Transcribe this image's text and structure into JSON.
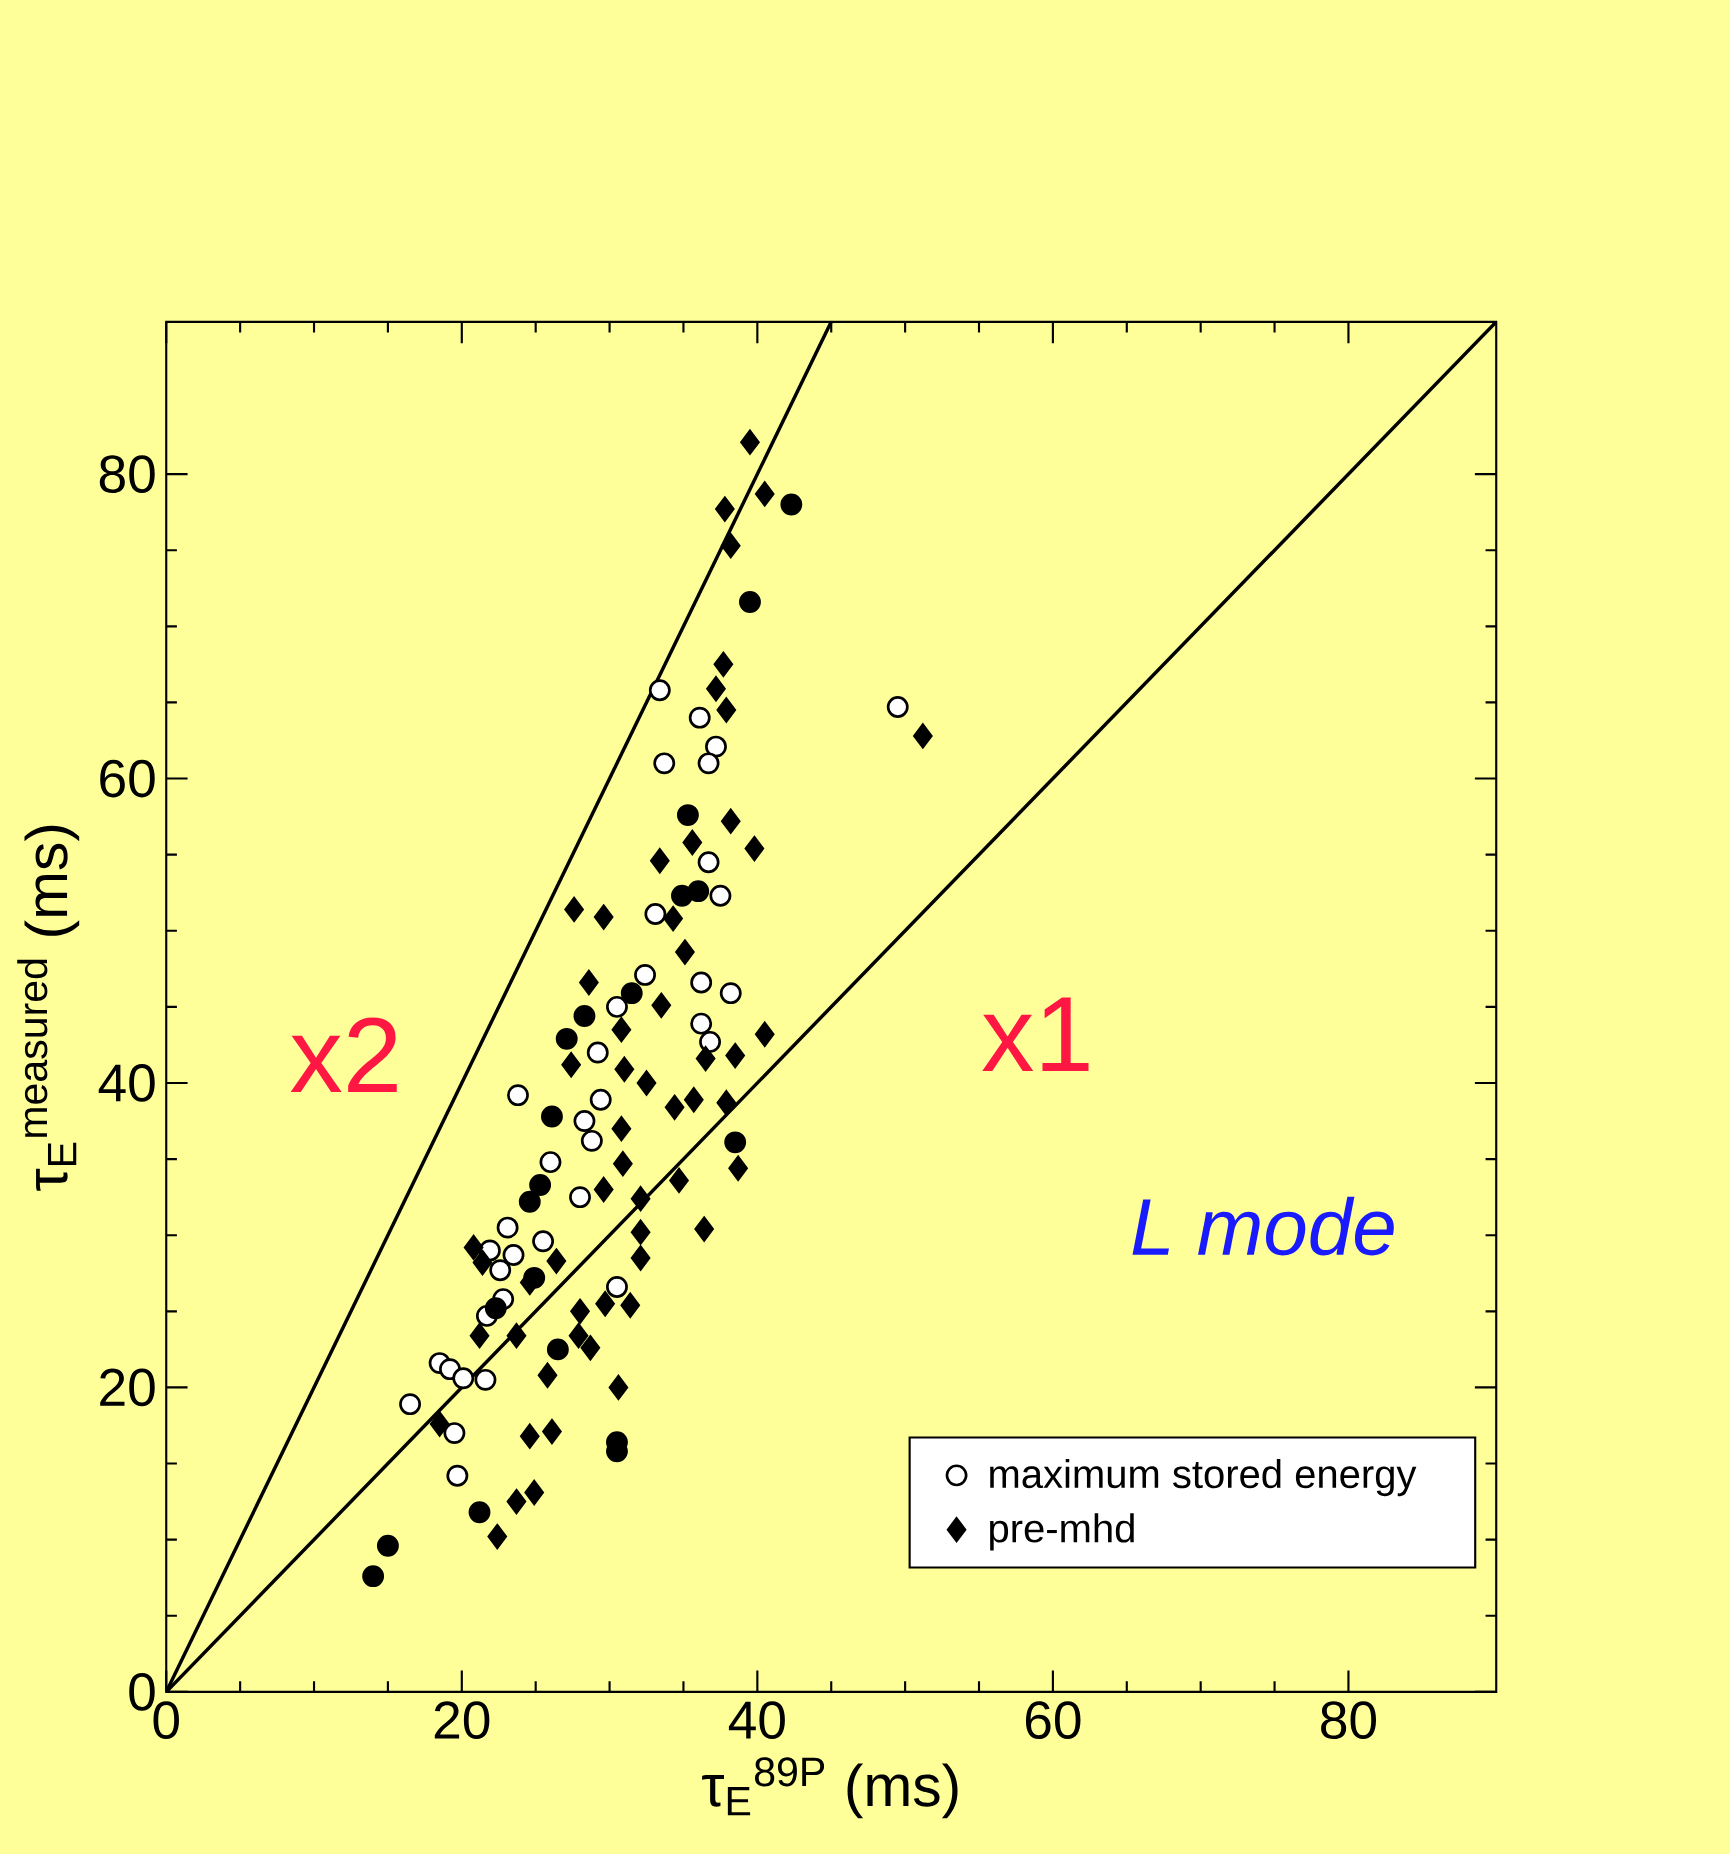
{
  "chart_data": {
    "type": "scatter",
    "xlabel": "τ$_{E}$$^{89P}$ (ms)",
    "ylabel": "τ$_{E}$$^{measured}$ (ms)",
    "xlim": [
      0,
      90
    ],
    "ylim": [
      0,
      90
    ],
    "xticks": [
      0,
      20,
      40,
      60,
      80
    ],
    "yticks": [
      0,
      20,
      40,
      60,
      80
    ],
    "grid": false,
    "legend": "bottom right",
    "annotations": [
      "x2",
      "x1",
      "*L mode*"
    ],
    "series": [
      {
        "name": "maximum stored energy",
        "type": "scatter",
        "marker": "circle",
        "color": "#ffffff",
        "x": [
          33.4,
          36.1,
          37.2,
          33.7,
          36.7,
          36.7,
          37.5,
          33.1,
          32.4,
          36.2,
          38.2,
          30.5,
          36.2,
          36.8,
          29.2,
          23.8,
          29.4,
          28.3,
          28.8,
          26.0,
          28.0,
          23.1,
          23.5,
          21.9,
          22.6,
          25.5,
          22.8,
          21.7,
          30.5,
          18.5,
          19.2,
          20.1,
          21.6,
          16.5,
          19.5,
          19.7,
          49.5
        ],
        "values": [
          65.8,
          64.0,
          62.1,
          61.0,
          61.0,
          54.5,
          52.3,
          51.1,
          47.1,
          46.6,
          45.9,
          45.0,
          43.9,
          42.7,
          42.0,
          39.2,
          38.9,
          37.5,
          36.2,
          34.8,
          32.5,
          30.5,
          28.7,
          29.0,
          27.7,
          29.6,
          25.8,
          24.7,
          26.6,
          21.6,
          21.2,
          20.6,
          20.5,
          18.9,
          17.0,
          14.2,
          64.7
        ]
      },
      {
        "name": "pre-mhd",
        "type": "scatter",
        "marker": "diamond",
        "color": "#000000",
        "x": [
          39.5,
          40.5,
          37.8,
          38.2,
          37.7,
          37.2,
          37.9,
          38.2,
          39.8,
          33.4,
          35.6,
          34.3,
          35.1,
          27.6,
          29.6,
          28.6,
          33.5,
          40.5,
          38.5,
          36.5,
          30.8,
          27.4,
          31.0,
          32.5,
          34.4,
          35.7,
          37.9,
          30.8,
          30.9,
          38.7,
          34.7,
          29.6,
          32.1,
          32.1,
          36.4,
          32.1,
          26.4,
          20.8,
          21.4,
          24.6,
          28.0,
          29.7,
          31.4,
          27.9,
          28.7,
          23.7,
          21.2,
          18.5,
          25.8,
          30.6,
          24.6,
          26.1,
          23.7,
          24.9,
          22.4,
          51.2
        ],
        "values": [
          82.1,
          78.7,
          77.7,
          75.3,
          67.5,
          65.9,
          64.5,
          57.2,
          55.4,
          54.6,
          55.8,
          50.8,
          48.6,
          51.4,
          50.9,
          46.6,
          45.1,
          43.2,
          41.8,
          41.6,
          43.5,
          41.2,
          40.9,
          40.0,
          38.4,
          38.9,
          38.7,
          37.0,
          34.7,
          34.4,
          33.6,
          33.0,
          32.4,
          30.2,
          30.4,
          28.5,
          28.3,
          29.2,
          28.2,
          26.9,
          25.0,
          25.5,
          25.4,
          23.4,
          22.6,
          23.4,
          23.4,
          17.6,
          20.8,
          20.0,
          16.8,
          17.1,
          12.5,
          13.1,
          10.2,
          62.8
        ]
      },
      {
        "type": "scatter",
        "marker": "circle",
        "color": "#000000",
        "x": [
          42.3,
          39.5,
          35.3,
          36.0,
          34.9,
          28.3,
          27.1,
          31.5,
          26.1,
          38.5,
          25.3,
          24.6,
          24.9,
          22.3,
          26.5,
          30.5,
          30.5,
          21.2,
          15.0,
          14.0
        ],
        "values": [
          78.0,
          71.6,
          57.6,
          52.6,
          52.3,
          44.4,
          42.9,
          45.9,
          37.8,
          36.1,
          33.3,
          32.2,
          27.2,
          25.2,
          22.5,
          16.4,
          15.8,
          11.8,
          9.6,
          7.6
        ]
      },
      {
        "type": "line",
        "line_style": "solid",
        "color": "#000000",
        "x": [
          0,
          45
        ],
        "values": [
          0,
          90
        ]
      },
      {
        "type": "line",
        "line_style": "solid",
        "color": "#000000",
        "x": [
          0,
          90
        ],
        "values": [
          0,
          90
        ]
      }
    ]
  }
}
